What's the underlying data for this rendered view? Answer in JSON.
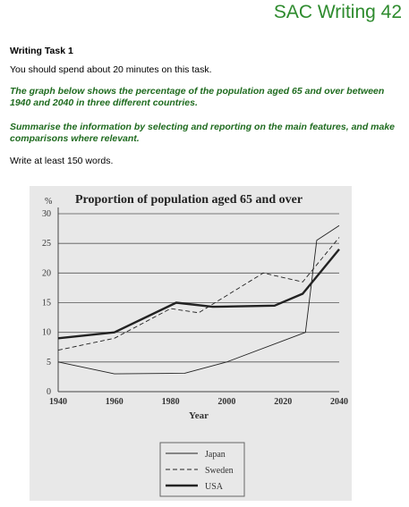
{
  "header": {
    "title": "SAC Writing 42"
  },
  "task": {
    "title": "Writing Task 1",
    "time_instruction": "You should spend about 20 minutes on this task.",
    "description": "The graph below shows the percentage of the population aged 65 and over between 1940 and 2040 in three different countries.",
    "summary_instruction": "Summarise the information by selecting and reporting on the main features, and make comparisons where relevant.",
    "word_instruction": "Write at least 150 words."
  },
  "chart_data": {
    "type": "line",
    "title": "Proportion of population aged 65 and over",
    "ylabel": "%",
    "xlabel": "Year",
    "xlim": [
      1940,
      2040
    ],
    "ylim": [
      0,
      30
    ],
    "xticks": [
      "1940",
      "1960",
      "1980",
      "2000",
      "2020",
      "2040"
    ],
    "yticks": [
      "0",
      "5",
      "10",
      "15",
      "20",
      "25",
      "30"
    ],
    "grid": "horizontal",
    "legend_position": "bottom",
    "series": [
      {
        "name": "Japan",
        "style": "solid-thin",
        "points": [
          [
            1940,
            5
          ],
          [
            1960,
            3
          ],
          [
            1985,
            3.1
          ],
          [
            2000,
            5
          ],
          [
            2028,
            10
          ],
          [
            2032,
            25.5
          ],
          [
            2040,
            28
          ]
        ]
      },
      {
        "name": "Sweden",
        "style": "dashed",
        "points": [
          [
            1940,
            7
          ],
          [
            1960,
            9
          ],
          [
            1980,
            14
          ],
          [
            1990,
            13.3
          ],
          [
            2013,
            20
          ],
          [
            2027,
            18.5
          ],
          [
            2040,
            26
          ]
        ]
      },
      {
        "name": "USA",
        "style": "solid-thick",
        "points": [
          [
            1940,
            9
          ],
          [
            1960,
            10
          ],
          [
            1982,
            15
          ],
          [
            1995,
            14.3
          ],
          [
            2017,
            14.5
          ],
          [
            2027,
            16.5
          ],
          [
            2040,
            24
          ]
        ]
      }
    ]
  }
}
